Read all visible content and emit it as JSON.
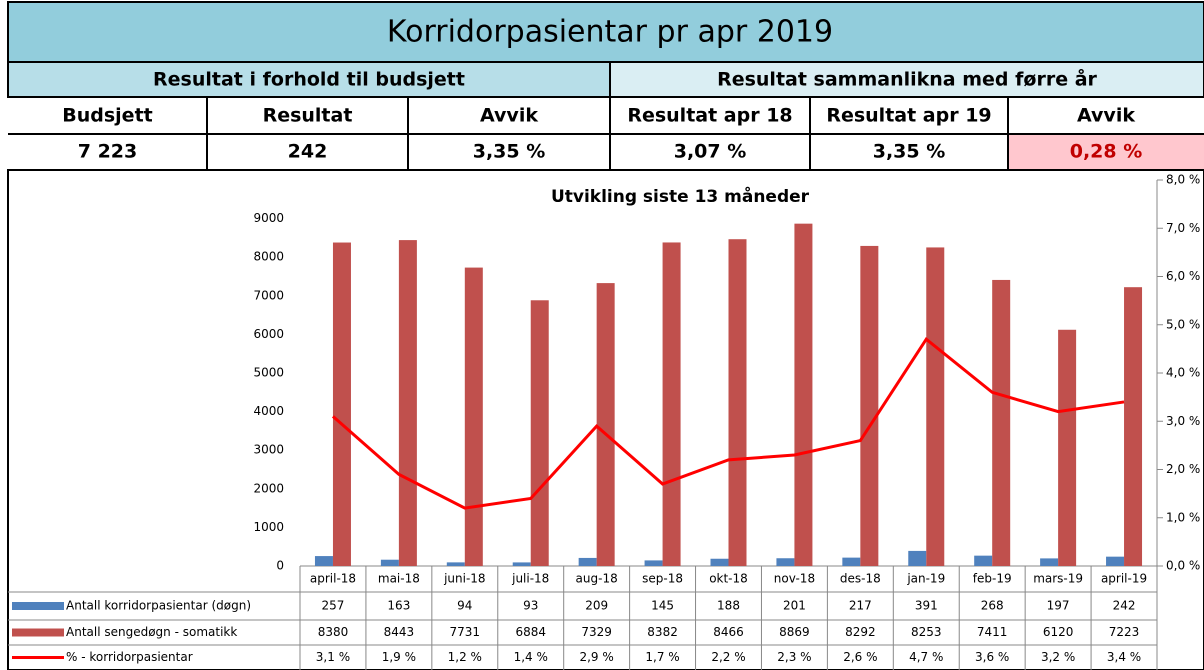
{
  "summary": {
    "title": "Korridorpasientar  pr apr 2019",
    "sections": [
      "Resultat i forhold til budsjett",
      "Resultat sammanlikna med førre år"
    ],
    "headers": [
      "Budsjett",
      "Resultat",
      "Avvik",
      "Resultat apr 18",
      "Resultat apr 19",
      "Avvik"
    ],
    "values": [
      "7 223",
      "242",
      "3,35 %",
      "3,07 %",
      "3,35 %",
      "0,28 %"
    ]
  },
  "chart_data": {
    "type": "bar",
    "title": "Utvikling siste 13 måneder",
    "categories": [
      "april-18",
      "mai-18",
      "juni-18",
      "juli-18",
      "aug-18",
      "sep-18",
      "okt-18",
      "nov-18",
      "des-18",
      "jan-19",
      "feb-19",
      "mars-19",
      "april-19"
    ],
    "series": [
      {
        "name": "Antall korridorpasientar (døgn)",
        "color": "#4f81bd",
        "values": [
          257,
          163,
          94,
          93,
          209,
          145,
          188,
          201,
          217,
          391,
          268,
          197,
          242
        ]
      },
      {
        "name": "Antall sengedøgn - somatikk",
        "color": "#c0504d",
        "values": [
          8380,
          8443,
          7731,
          6884,
          7329,
          8382,
          8466,
          8869,
          8292,
          8253,
          7411,
          6120,
          7223
        ]
      },
      {
        "name": "% - korridorpasientar",
        "color": "#ff0000",
        "type": "line",
        "axis": "y2",
        "values": [
          3.1,
          1.9,
          1.2,
          1.4,
          2.9,
          1.7,
          2.2,
          2.3,
          2.6,
          4.7,
          3.6,
          3.2,
          3.4
        ],
        "value_labels": [
          "3,1 %",
          "1,9 %",
          "1,2 %",
          "1,4 %",
          "2,9 %",
          "1,7 %",
          "2,2 %",
          "2,3 %",
          "2,6 %",
          "4,7 %",
          "3,6 %",
          "3,2 %",
          "3,4 %"
        ]
      }
    ],
    "ylim": [
      0,
      10000
    ],
    "yticks": [
      0,
      1000,
      2000,
      3000,
      4000,
      5000,
      6000,
      7000,
      8000,
      9000
    ],
    "y2lim": [
      0,
      8
    ],
    "y2ticks": [
      {
        "value": 0,
        "label": "0,0 %"
      },
      {
        "value": 1,
        "label": "1,0 %"
      },
      {
        "value": 2,
        "label": "2,0 %"
      },
      {
        "value": 3,
        "label": "3,0 %"
      },
      {
        "value": 4,
        "label": "4,0 %"
      },
      {
        "value": 5,
        "label": "5,0 %"
      },
      {
        "value": 6,
        "label": "6,0 %"
      },
      {
        "value": 7,
        "label": "7,0 %"
      },
      {
        "value": 8,
        "label": "8,0 %"
      }
    ]
  }
}
